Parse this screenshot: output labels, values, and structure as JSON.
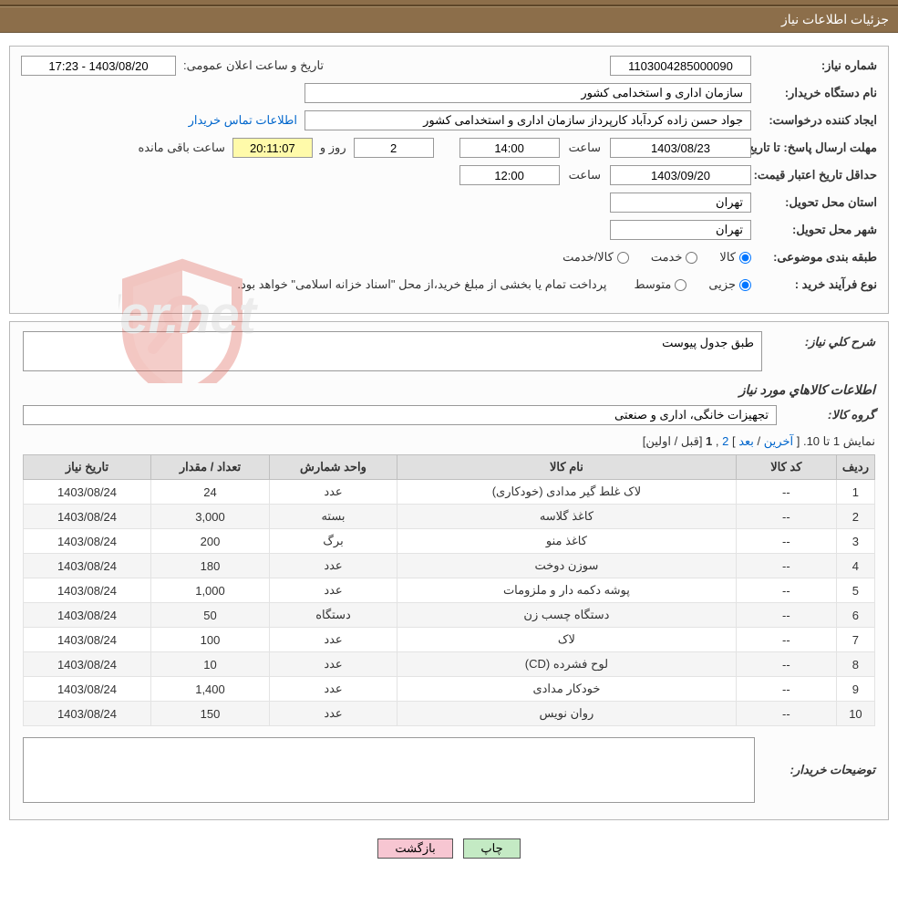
{
  "header": {
    "title": "جزئیات اطلاعات نیاز"
  },
  "form": {
    "need_number_label": "شماره نیاز:",
    "need_number": "1103004285000090",
    "announce_label": "تاریخ و ساعت اعلان عمومی:",
    "announce_value": "1403/08/20 - 17:23",
    "buyer_org_label": "نام دستگاه خریدار:",
    "buyer_org": "سازمان اداری و استخدامی کشور",
    "requester_label": "ایجاد کننده درخواست:",
    "requester": "جواد حسن زاده کردآباد کارپرداز سازمان اداری و استخدامی کشور",
    "buyer_contact_link": "اطلاعات تماس خریدار",
    "deadline_label": "مهلت ارسال پاسخ:",
    "until_date_label": "تا تاریخ:",
    "deadline_date": "1403/08/23",
    "time_label": "ساعت",
    "deadline_time": "14:00",
    "days_and": "روز و",
    "days_left": "2",
    "time_left": "20:11:07",
    "remaining_label": "ساعت باقی مانده",
    "price_validity_label": "حداقل تاریخ اعتبار قیمت:",
    "price_validity_date": "1403/09/20",
    "price_validity_time": "12:00",
    "province_label": "استان محل تحویل:",
    "province": "تهران",
    "city_label": "شهر محل تحویل:",
    "city": "تهران",
    "category_label": "طبقه بندی موضوعی:",
    "cat_opt_goods": "کالا",
    "cat_opt_service": "خدمت",
    "cat_opt_both": "کالا/خدمت",
    "process_label": "نوع فرآیند خرید :",
    "proc_opt_minor": "جزیی",
    "proc_opt_medium": "متوسط",
    "process_note": "پرداخت تمام یا بخشی از مبلغ خرید،از محل \"اسناد خزانه اسلامی\" خواهد بود."
  },
  "details": {
    "desc_label": "شرح کلي نياز:",
    "desc_value": "طبق جدول پیوست",
    "goods_heading": "اطلاعات کالاهاي مورد نياز",
    "group_label": "گروه کالا:",
    "group_value": "تجهیزات خانگی، اداری و صنعتی",
    "pager_text_a": "نمایش 1 تا 10.",
    "pager_last": "آخرین",
    "pager_next": "بعد",
    "pager_page2": "2",
    "pager_page1": "1",
    "pager_prev": "قبل",
    "pager_first": "اولین",
    "columns": {
      "row": "ردیف",
      "code": "کد کالا",
      "name": "نام کالا",
      "unit": "واحد شمارش",
      "qty": "تعداد / مقدار",
      "date": "تاریخ نیاز"
    },
    "rows": [
      {
        "row": "1",
        "code": "--",
        "name": "لاک غلط گیر مدادی (خودکاری)",
        "unit": "عدد",
        "qty": "24",
        "date": "1403/08/24"
      },
      {
        "row": "2",
        "code": "--",
        "name": "کاغذ گلاسه",
        "unit": "بسته",
        "qty": "3,000",
        "date": "1403/08/24"
      },
      {
        "row": "3",
        "code": "--",
        "name": "کاغذ منو",
        "unit": "برگ",
        "qty": "200",
        "date": "1403/08/24"
      },
      {
        "row": "4",
        "code": "--",
        "name": "سوزن دوخت",
        "unit": "عدد",
        "qty": "180",
        "date": "1403/08/24"
      },
      {
        "row": "5",
        "code": "--",
        "name": "پوشه دکمه دار و ملزومات",
        "unit": "عدد",
        "qty": "1,000",
        "date": "1403/08/24"
      },
      {
        "row": "6",
        "code": "--",
        "name": "دستگاه چسب زن",
        "unit": "دستگاه",
        "qty": "50",
        "date": "1403/08/24"
      },
      {
        "row": "7",
        "code": "--",
        "name": "لاک",
        "unit": "عدد",
        "qty": "100",
        "date": "1403/08/24"
      },
      {
        "row": "8",
        "code": "--",
        "name": "لوح فشرده (CD)",
        "unit": "عدد",
        "qty": "10",
        "date": "1403/08/24"
      },
      {
        "row": "9",
        "code": "--",
        "name": "خودکار مدادی",
        "unit": "عدد",
        "qty": "1,400",
        "date": "1403/08/24"
      },
      {
        "row": "10",
        "code": "--",
        "name": "روان نویس",
        "unit": "عدد",
        "qty": "150",
        "date": "1403/08/24"
      }
    ],
    "buyer_notes_label": "توضيحات خريدار:",
    "buyer_notes_value": ""
  },
  "buttons": {
    "print": "چاپ",
    "back": "بازگشت"
  },
  "watermark": "AriaTender.net",
  "styling": {
    "header_bg": "#8c6e4a",
    "header_fg": "#ffffff",
    "panel_border": "#b8b8b8",
    "link_color": "#0066cc",
    "time_highlight_bg": "#fffaaa",
    "btn_print_bg": "#c4eac4",
    "btn_back_bg": "#f7c6d2",
    "table_header_bg": "#e0e0e0",
    "table_stripe_bg": "#f5f5f5",
    "shield_stroke": "#d84a3b"
  }
}
